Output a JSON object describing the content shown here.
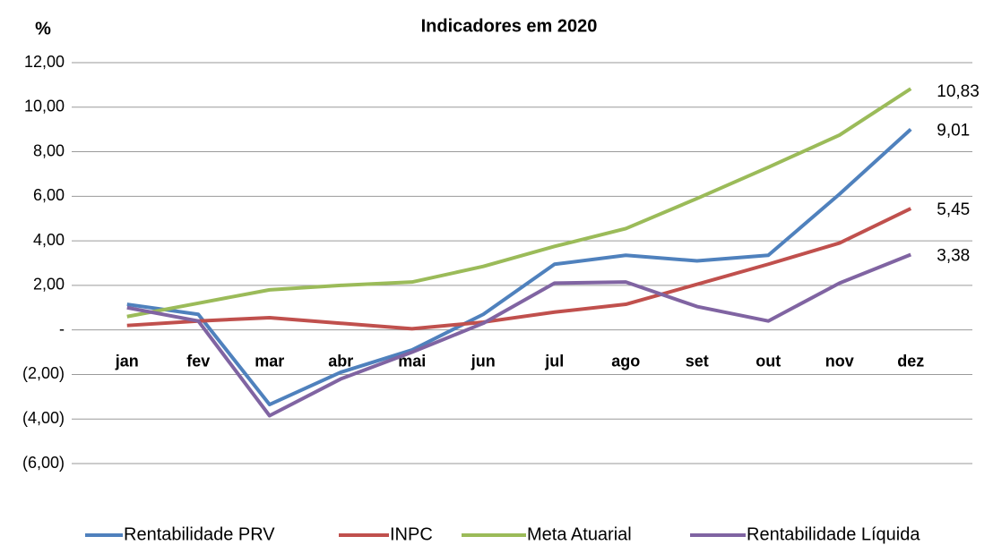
{
  "chart_data": {
    "type": "line",
    "title": "Indicadores em 2020",
    "y_label": "%",
    "categories": [
      "jan",
      "fev",
      "mar",
      "abr",
      "mai",
      "jun",
      "jul",
      "ago",
      "set",
      "out",
      "nov",
      "dez"
    ],
    "series": [
      {
        "name": "Rentabilidade PRV",
        "color": "#4f81bd",
        "values": [
          1.15,
          0.7,
          -3.35,
          -1.9,
          -0.9,
          0.7,
          2.95,
          3.35,
          3.1,
          3.35,
          6.1,
          9.01
        ],
        "value_labels": [
          null,
          null,
          null,
          null,
          null,
          null,
          null,
          null,
          null,
          null,
          null,
          "9,01"
        ]
      },
      {
        "name": "INPC",
        "color": "#c0504d",
        "values": [
          0.2,
          0.4,
          0.55,
          0.3,
          0.05,
          0.35,
          0.8,
          1.15,
          2.05,
          2.95,
          3.9,
          5.45
        ],
        "value_labels": [
          null,
          null,
          null,
          null,
          null,
          null,
          null,
          null,
          null,
          null,
          null,
          "5,45"
        ]
      },
      {
        "name": "Meta Atuarial",
        "color": "#9bbb59",
        "values": [
          0.6,
          1.2,
          1.8,
          2.0,
          2.15,
          2.85,
          3.75,
          4.55,
          5.9,
          7.3,
          8.75,
          10.83
        ],
        "value_labels": [
          null,
          null,
          null,
          null,
          null,
          null,
          null,
          null,
          null,
          null,
          null,
          "10,83"
        ]
      },
      {
        "name": "Rentabilidade Líquida",
        "color": "#8064a2",
        "values": [
          1.0,
          0.4,
          -3.85,
          -2.2,
          -1.0,
          0.3,
          2.1,
          2.15,
          1.05,
          0.4,
          2.1,
          3.38
        ],
        "value_labels": [
          null,
          null,
          null,
          null,
          null,
          null,
          null,
          null,
          null,
          null,
          null,
          "3,38"
        ]
      }
    ],
    "ylim": [
      -6,
      12
    ],
    "yticks": [
      {
        "value": -6,
        "label": "(6,00)"
      },
      {
        "value": -4,
        "label": "(4,00)"
      },
      {
        "value": -2,
        "label": "(2,00)"
      },
      {
        "value": 0,
        "label": "-"
      },
      {
        "value": 2,
        "label": "2,00"
      },
      {
        "value": 4,
        "label": "4,00"
      },
      {
        "value": 6,
        "label": "6,00"
      },
      {
        "value": 8,
        "label": "8,00"
      },
      {
        "value": 10,
        "label": "10,00"
      },
      {
        "value": 12,
        "label": "12,00"
      }
    ],
    "grid": true,
    "legend": "bottom"
  }
}
